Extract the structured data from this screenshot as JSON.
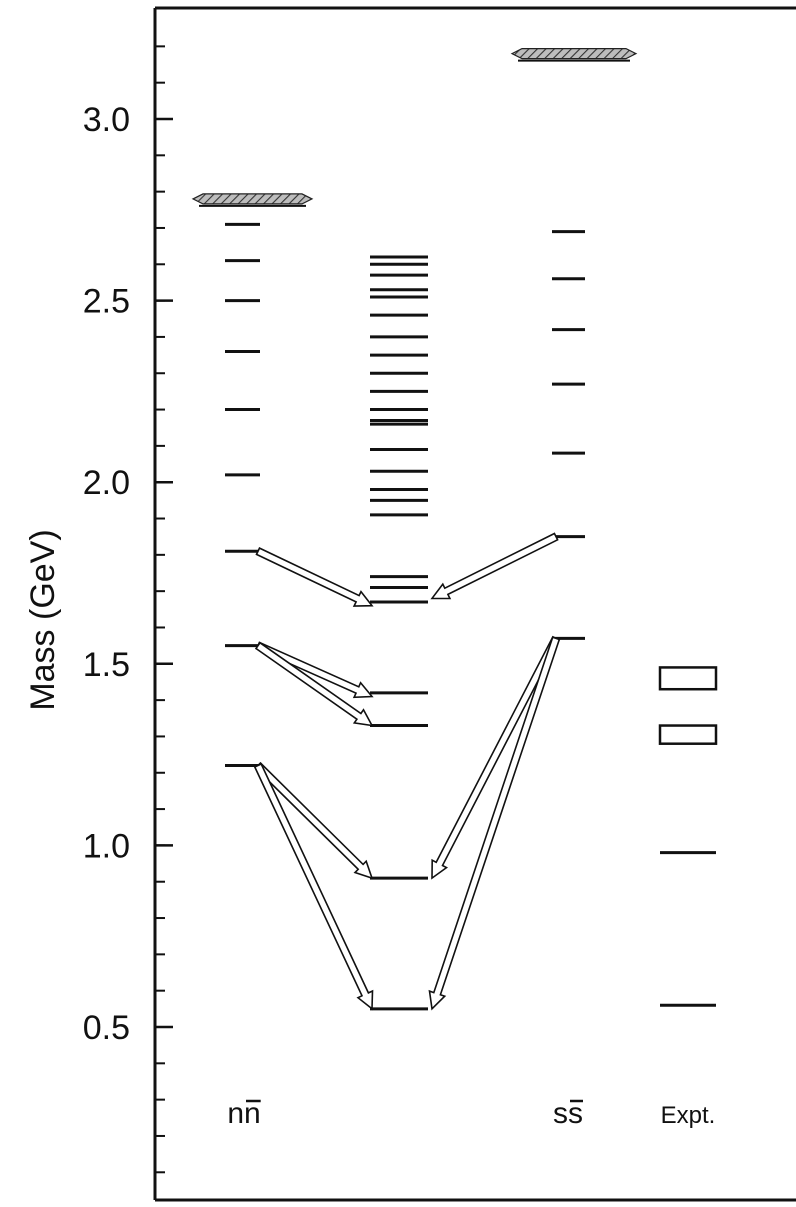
{
  "chart_data": {
    "type": "level-diagram",
    "ylabel": "Mass (GeV)",
    "ylim": [
      0.0,
      3.3
    ],
    "yticks_major": [
      0.5,
      1.0,
      1.5,
      2.0,
      2.5,
      3.0
    ],
    "ytick_labels": [
      "0.5",
      "1.0",
      "1.5",
      "2.0",
      "2.5",
      "3.0"
    ],
    "yticks_minor_step": 0.1,
    "columns": [
      {
        "key": "nn",
        "label": "nn",
        "threshold": 2.78,
        "levels": [
          2.71,
          2.61,
          2.5,
          2.36,
          2.2,
          2.02,
          1.81,
          1.55,
          1.22
        ]
      },
      {
        "key": "mixed",
        "label": "",
        "levels": [
          2.62,
          2.6,
          2.57,
          2.53,
          2.51,
          2.46,
          2.4,
          2.35,
          2.3,
          2.25,
          2.2,
          2.17,
          2.16,
          2.09,
          2.03,
          1.98,
          1.95,
          1.91,
          1.74,
          1.71,
          1.67,
          1.42,
          1.33,
          0.91,
          0.55
        ]
      },
      {
        "key": "ss",
        "label": "ss",
        "threshold": 3.18,
        "levels": [
          2.69,
          2.56,
          2.42,
          2.27,
          2.08,
          1.85,
          1.57
        ]
      },
      {
        "key": "expt",
        "label": "Expt.",
        "levels": [
          0.98,
          0.56
        ],
        "boxes": [
          {
            "low": 1.43,
            "high": 1.49
          },
          {
            "low": 1.28,
            "high": 1.33
          }
        ]
      }
    ],
    "arrows": [
      {
        "from": "nn",
        "from_mass": 1.81,
        "to_mass": 1.66
      },
      {
        "from": "ss",
        "from_mass": 1.85,
        "to_mass": 1.68
      },
      {
        "from": "nn",
        "from_mass": 1.55,
        "to_mass": 1.41
      },
      {
        "from": "nn",
        "from_mass": 1.55,
        "to_mass": 1.33
      },
      {
        "from": "nn",
        "from_mass": 1.22,
        "to_mass": 0.91
      },
      {
        "from": "nn",
        "from_mass": 1.22,
        "to_mass": 0.55
      },
      {
        "from": "ss",
        "from_mass": 1.57,
        "to_mass": 0.91
      },
      {
        "from": "ss",
        "from_mass": 1.57,
        "to_mass": 0.55
      }
    ]
  }
}
